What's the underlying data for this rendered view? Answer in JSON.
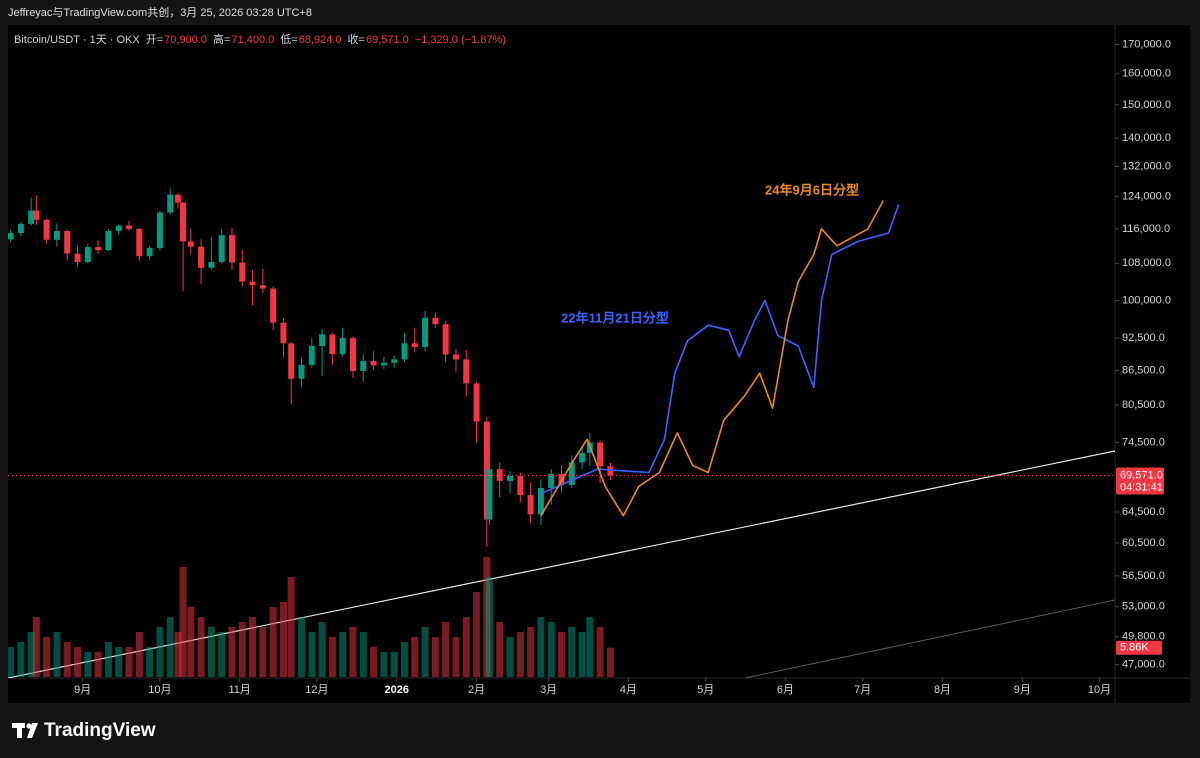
{
  "header_text": "Jeffreyac与TradingView.com共创，3月 25, 2026 03:28 UTC+8",
  "footer_brand": "TradingView",
  "chart_data": {
    "type": "candlestick",
    "symbol": "Bitcoin/USDT · 1天 · OKX",
    "ohlc_legend": [
      {
        "label": "开=",
        "value": "70,900.0"
      },
      {
        "label": "高=",
        "value": "71,400.0"
      },
      {
        "label": "低=",
        "value": "68,924.0"
      },
      {
        "label": "收=",
        "value": "69,571.0"
      }
    ],
    "change_text": "−1,329.0 (−1.87%)",
    "log_scale": true,
    "grid": false,
    "up_color": "#089981",
    "down_color": "#f23645",
    "ylim": [
      44600,
      177000
    ],
    "yticks": [
      {
        "value": 170000,
        "label": "170,000.0"
      },
      {
        "value": 160000,
        "label": "160,000.0"
      },
      {
        "value": 150000,
        "label": "150,000.0"
      },
      {
        "value": 140000,
        "label": "140,000.0"
      },
      {
        "value": 132000,
        "label": "132,000.0"
      },
      {
        "value": 124000,
        "label": "124,000.0"
      },
      {
        "value": 116000,
        "label": "116,000.0"
      },
      {
        "value": 108000,
        "label": "108,000.0"
      },
      {
        "value": 100000,
        "label": "100,000.0"
      },
      {
        "value": 92500,
        "label": "92,500.0"
      },
      {
        "value": 86500,
        "label": "86,500.0"
      },
      {
        "value": 80500,
        "label": "80,500.0"
      },
      {
        "value": 74500,
        "label": "74,500.0"
      },
      {
        "value": 64500,
        "label": "64,500.0"
      },
      {
        "value": 60500,
        "label": "60,500.0"
      },
      {
        "value": 56500,
        "label": "56,500.0"
      },
      {
        "value": 53000,
        "label": "53,000.0"
      },
      {
        "value": 49800,
        "label": "49,800.0"
      },
      {
        "value": 47000,
        "label": "47,000.0"
      }
    ],
    "xlim": [
      "2025-08-03",
      "2026-10-07"
    ],
    "xticks": [
      {
        "value": "2025-09-01",
        "label": "9月"
      },
      {
        "value": "2025-10-01",
        "label": "10月"
      },
      {
        "value": "2025-11-01",
        "label": "11月"
      },
      {
        "value": "2025-12-01",
        "label": "12月"
      },
      {
        "value": "2026-01-01",
        "label": "2026"
      },
      {
        "value": "2026-02-01",
        "label": "2月"
      },
      {
        "value": "2026-03-01",
        "label": "3月"
      },
      {
        "value": "2026-04-01",
        "label": "4月"
      },
      {
        "value": "2026-05-01",
        "label": "5月"
      },
      {
        "value": "2026-06-01",
        "label": "6月"
      },
      {
        "value": "2026-07-01",
        "label": "7月"
      },
      {
        "value": "2026-08-01",
        "label": "8月"
      },
      {
        "value": "2026-09-01",
        "label": "9月"
      },
      {
        "value": "2026-10-01",
        "label": "10月"
      }
    ],
    "x": [
      "2025-08-04",
      "2025-08-08",
      "2025-08-12",
      "2025-08-14",
      "2025-08-18",
      "2025-08-22",
      "2025-08-26",
      "2025-08-30",
      "2025-09-03",
      "2025-09-07",
      "2025-09-11",
      "2025-09-15",
      "2025-09-19",
      "2025-09-23",
      "2025-09-27",
      "2025-10-01",
      "2025-10-05",
      "2025-10-08",
      "2025-10-10",
      "2025-10-13",
      "2025-10-17",
      "2025-10-21",
      "2025-10-25",
      "2025-10-29",
      "2025-11-02",
      "2025-11-06",
      "2025-11-10",
      "2025-11-14",
      "2025-11-18",
      "2025-11-21",
      "2025-11-25",
      "2025-11-29",
      "2025-12-03",
      "2025-12-07",
      "2025-12-11",
      "2025-12-15",
      "2025-12-19",
      "2025-12-23",
      "2025-12-27",
      "2025-12-31",
      "2026-01-04",
      "2026-01-08",
      "2026-01-12",
      "2026-01-16",
      "2026-01-20",
      "2026-01-24",
      "2026-01-28",
      "2026-02-01",
      "2026-02-05",
      "2026-02-06",
      "2026-02-10",
      "2026-02-14",
      "2026-02-18",
      "2026-02-22",
      "2026-02-26",
      "2026-03-02",
      "2026-03-06",
      "2026-03-10",
      "2026-03-14",
      "2026-03-17",
      "2026-03-21",
      "2026-03-25"
    ],
    "open": [
      113500,
      115000,
      117200,
      120500,
      118200,
      113400,
      115500,
      110200,
      108300,
      111700,
      111000,
      115500,
      116800,
      116000,
      109600,
      111500,
      120000,
      124500,
      122500,
      113000,
      111800,
      107000,
      108300,
      114500,
      108200,
      104000,
      103200,
      102500,
      95500,
      91500,
      85000,
      87500,
      91000,
      93200,
      89500,
      92500,
      86400,
      88200,
      87400,
      87900,
      88500,
      91500,
      90800,
      96500,
      95200,
      89400,
      88500,
      84200,
      77800,
      63500,
      70500,
      68800,
      69500,
      66800,
      64200,
      67800,
      69800,
      68200,
      71500,
      72900,
      74500,
      70900
    ],
    "high": [
      115800,
      117600,
      123800,
      124400,
      118500,
      117300,
      115800,
      111900,
      112500,
      113200,
      116000,
      117000,
      117900,
      116200,
      112000,
      120500,
      126200,
      124900,
      122600,
      116000,
      113500,
      114000,
      116000,
      116200,
      111000,
      106500,
      106800,
      103000,
      96500,
      91800,
      88800,
      92500,
      94200,
      93500,
      94500,
      92800,
      89500,
      90000,
      89000,
      89200,
      93500,
      94500,
      97800,
      97500,
      95800,
      90500,
      90200,
      84500,
      78500,
      72000,
      71500,
      70200,
      70000,
      68500,
      69000,
      70500,
      71000,
      72500,
      74000,
      76000,
      74800,
      71400
    ],
    "low": [
      112900,
      114200,
      116800,
      117000,
      112500,
      111800,
      108600,
      107300,
      108000,
      110200,
      110800,
      114500,
      115500,
      108500,
      108700,
      111000,
      119500,
      121000,
      102000,
      110000,
      103500,
      106500,
      108000,
      106500,
      103000,
      99000,
      101500,
      94000,
      89000,
      80600,
      83500,
      87000,
      85500,
      87500,
      89000,
      85200,
      84500,
      86600,
      86800,
      87000,
      88000,
      89800,
      90000,
      94500,
      88000,
      86200,
      82000,
      74500,
      60000,
      62800,
      66500,
      67000,
      65800,
      63000,
      62800,
      65500,
      67200,
      67800,
      70500,
      71000,
      68500,
      68924
    ],
    "close": [
      115000,
      117200,
      120500,
      118200,
      113400,
      115500,
      110200,
      108300,
      111700,
      111000,
      115500,
      116800,
      116000,
      109600,
      111500,
      120000,
      124500,
      122500,
      113000,
      111800,
      107000,
      108300,
      114500,
      108200,
      104000,
      103200,
      102500,
      95500,
      91500,
      85000,
      87500,
      91000,
      93200,
      89500,
      92500,
      86400,
      88200,
      87400,
      87900,
      88500,
      91500,
      90800,
      96500,
      95200,
      89400,
      88500,
      84200,
      77800,
      63500,
      70500,
      68800,
      69500,
      66800,
      64200,
      67800,
      69800,
      68200,
      71500,
      72900,
      74500,
      70900,
      69571
    ],
    "volume": [
      6000,
      7000,
      9000,
      12000,
      8000,
      9000,
      7000,
      6000,
      5000,
      5000,
      7000,
      6000,
      6000,
      9000,
      6000,
      10000,
      12000,
      9000,
      22000,
      14000,
      12000,
      10000,
      9000,
      10000,
      11000,
      12000,
      10000,
      14000,
      15000,
      20000,
      12000,
      9000,
      11000,
      8000,
      9000,
      10000,
      9000,
      6000,
      5000,
      5000,
      7000,
      8000,
      10000,
      8000,
      11000,
      8000,
      12000,
      17000,
      24000,
      20000,
      11000,
      8000,
      9000,
      10000,
      12000,
      11000,
      9000,
      10000,
      9000,
      12000,
      10000,
      5860
    ],
    "volume_ylim": [
      0,
      24000
    ],
    "volume_last_label": "5.86K",
    "last_price": 69571,
    "last_price_label": "69,571.0",
    "countdown": "04:31:41",
    "overlays": [
      {
        "name": "22年11月21日分型",
        "color": "#3a64ff",
        "x": [
          "2026-02-26",
          "2026-03-20",
          "2026-04-09",
          "2026-04-15",
          "2026-04-19",
          "2026-04-24",
          "2026-05-02",
          "2026-05-10",
          "2026-05-14",
          "2026-05-20",
          "2026-05-24",
          "2026-05-29",
          "2026-06-06",
          "2026-06-12",
          "2026-06-15",
          "2026-06-19",
          "2026-06-29",
          "2026-07-11",
          "2026-07-15"
        ],
        "values": [
          67000,
          70500,
          70000,
          75000,
          86000,
          92000,
          95000,
          94000,
          89000,
          96000,
          100000,
          93000,
          91000,
          83500,
          100000,
          110000,
          113000,
          115000,
          122000
        ]
      },
      {
        "name": "24年9月6日分型",
        "color": "#e8892b",
        "x": [
          "2026-02-26",
          "2026-03-11",
          "2026-03-16",
          "2026-03-23",
          "2026-03-30",
          "2026-04-05",
          "2026-04-13",
          "2026-04-20",
          "2026-04-26",
          "2026-05-02",
          "2026-05-08",
          "2026-05-16",
          "2026-05-22",
          "2026-05-27",
          "2026-06-02",
          "2026-06-06",
          "2026-06-12",
          "2026-06-15",
          "2026-06-21",
          "2026-07-03",
          "2026-07-09"
        ],
        "values": [
          64000,
          72000,
          75000,
          68000,
          64000,
          68000,
          70000,
          76000,
          71000,
          70000,
          78000,
          82000,
          86000,
          80000,
          96000,
          104000,
          110000,
          116000,
          112000,
          116000,
          123000
        ]
      }
    ]
  }
}
